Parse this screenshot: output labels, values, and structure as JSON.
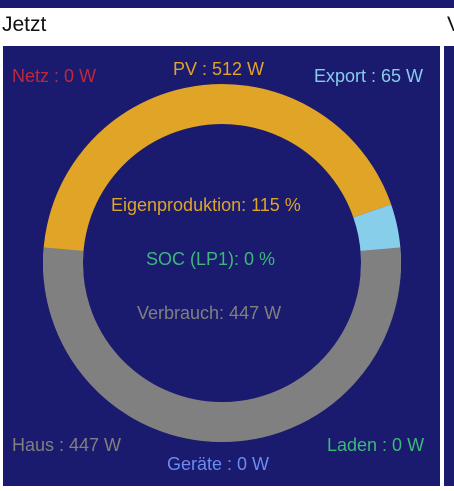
{
  "header": {
    "title": "Jetzt",
    "next_title_fragment": "V"
  },
  "colors": {
    "background": "#1a1a6e",
    "pv": "#e0a426",
    "export": "#87ceeb",
    "consumption": "#808080",
    "netz": "#c0283a",
    "soc": "#3cb878",
    "geraete": "#6a8cf0"
  },
  "labels": {
    "netz": "Netz : 0 W",
    "pv": "PV : 512 W",
    "export": "Export : 65 W",
    "eigenproduktion": "Eigenproduktion: 115 %",
    "soc": "SOC (LP1): 0 %",
    "verbrauch": "Verbrauch: 447 W",
    "haus": "Haus : 447 W",
    "laden": "Laden : 0 W",
    "geraete": "Geräte : 0 W"
  },
  "chart_data": {
    "type": "donut",
    "upper_ring": [
      {
        "name": "PV",
        "value": 447
      },
      {
        "name": "Export",
        "value": 65
      }
    ],
    "lower_ring": [
      {
        "name": "Haus",
        "value": 447
      },
      {
        "name": "Geräte",
        "value": 0
      },
      {
        "name": "Laden",
        "value": 0
      }
    ]
  }
}
